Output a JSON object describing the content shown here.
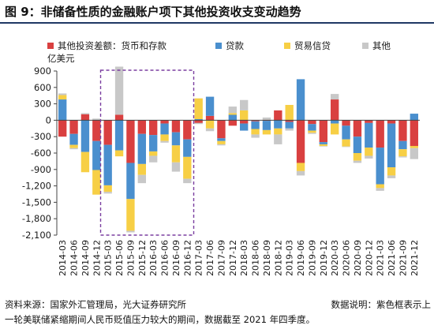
{
  "title": "图 9：非储备性质的金融账户项下其他投资收支变动趋势",
  "footer": {
    "source": "资料来源：国家外汇管理局，光大证券研究所",
    "note_right": "数据说明：紫色框表示上",
    "note_line2": "一轮美联储紧缩期间人民币贬值压力较大的期间，数据截至 2021 年四季度。"
  },
  "colors": {
    "s1": "#d94040",
    "s2": "#4a8fce",
    "s3": "#f7cf45",
    "s4": "#c8c8c8",
    "highlight_box": "#7b3fa0",
    "title_rule": "#1f3864"
  },
  "chart_data": {
    "type": "bar",
    "stacked": true,
    "unit": "亿美元",
    "ylim": [
      -2100,
      900
    ],
    "yticks": [
      900,
      600,
      300,
      0,
      -300,
      -600,
      -900,
      -1200,
      -1500,
      -1800,
      -2100
    ],
    "ytick_labels": [
      "900",
      "600",
      "300",
      "0",
      "-300",
      "-600",
      "-900",
      "-1,200",
      "-1,500",
      "-1,800",
      "-2,100"
    ],
    "categories": [
      "2014-03",
      "2014-06",
      "2014-09",
      "2014-12",
      "2015-03",
      "2015-06",
      "2015-09",
      "2015-12",
      "2016-03",
      "2016-06",
      "2016-09",
      "2016-12",
      "2017-03",
      "2017-06",
      "2017-09",
      "2017-12",
      "2018-03",
      "2018-06",
      "2018-09",
      "2018-12",
      "2019-03",
      "2019-06",
      "2019-09",
      "2019-12",
      "2020-03",
      "2020-06",
      "2020-09",
      "2020-12",
      "2021-03",
      "2021-06",
      "2021-09",
      "2021-12"
    ],
    "series": [
      {
        "name": "其他投资差额：货币和存款",
        "color_key": "s1",
        "values": [
          -300,
          -250,
          110,
          -380,
          -450,
          100,
          -780,
          -250,
          -270,
          -60,
          -220,
          -350,
          -50,
          80,
          -330,
          -100,
          -60,
          -20,
          -10,
          180,
          -30,
          -780,
          -70,
          -400,
          380,
          -100,
          -300,
          -50,
          -500,
          -60,
          -380,
          -470
        ]
      },
      {
        "name": "贷款",
        "color_key": "s2",
        "values": [
          380,
          -200,
          -580,
          -530,
          -740,
          -550,
          -660,
          -550,
          -300,
          -200,
          -240,
          -320,
          20,
          350,
          -50,
          100,
          -130,
          -140,
          -170,
          -150,
          -120,
          750,
          -120,
          -40,
          -60,
          -250,
          -300,
          -450,
          -670,
          -800,
          -150,
          120
        ]
      },
      {
        "name": "贸易信贷",
        "color_key": "s3",
        "values": [
          80,
          -60,
          -370,
          -450,
          -120,
          -110,
          -580,
          -200,
          -80,
          -120,
          -310,
          -400,
          380,
          -150,
          -60,
          30,
          180,
          -100,
          -80,
          -110,
          280,
          -150,
          -40,
          -30,
          -200,
          -130,
          -140,
          -150,
          -70,
          -150,
          -130,
          -40
        ]
      },
      {
        "name": "其他",
        "color_key": "s4",
        "values": [
          30,
          -20,
          20,
          30,
          -30,
          880,
          -30,
          -150,
          -120,
          -30,
          -170,
          -80,
          -20,
          -50,
          -20,
          120,
          190,
          -60,
          50,
          -180,
          -40,
          -80,
          -20,
          -10,
          100,
          -10,
          -40,
          -50,
          -50,
          -50,
          -20,
          -200
        ]
      }
    ],
    "highlight_range": [
      "2015-03",
      "2016-12"
    ]
  }
}
